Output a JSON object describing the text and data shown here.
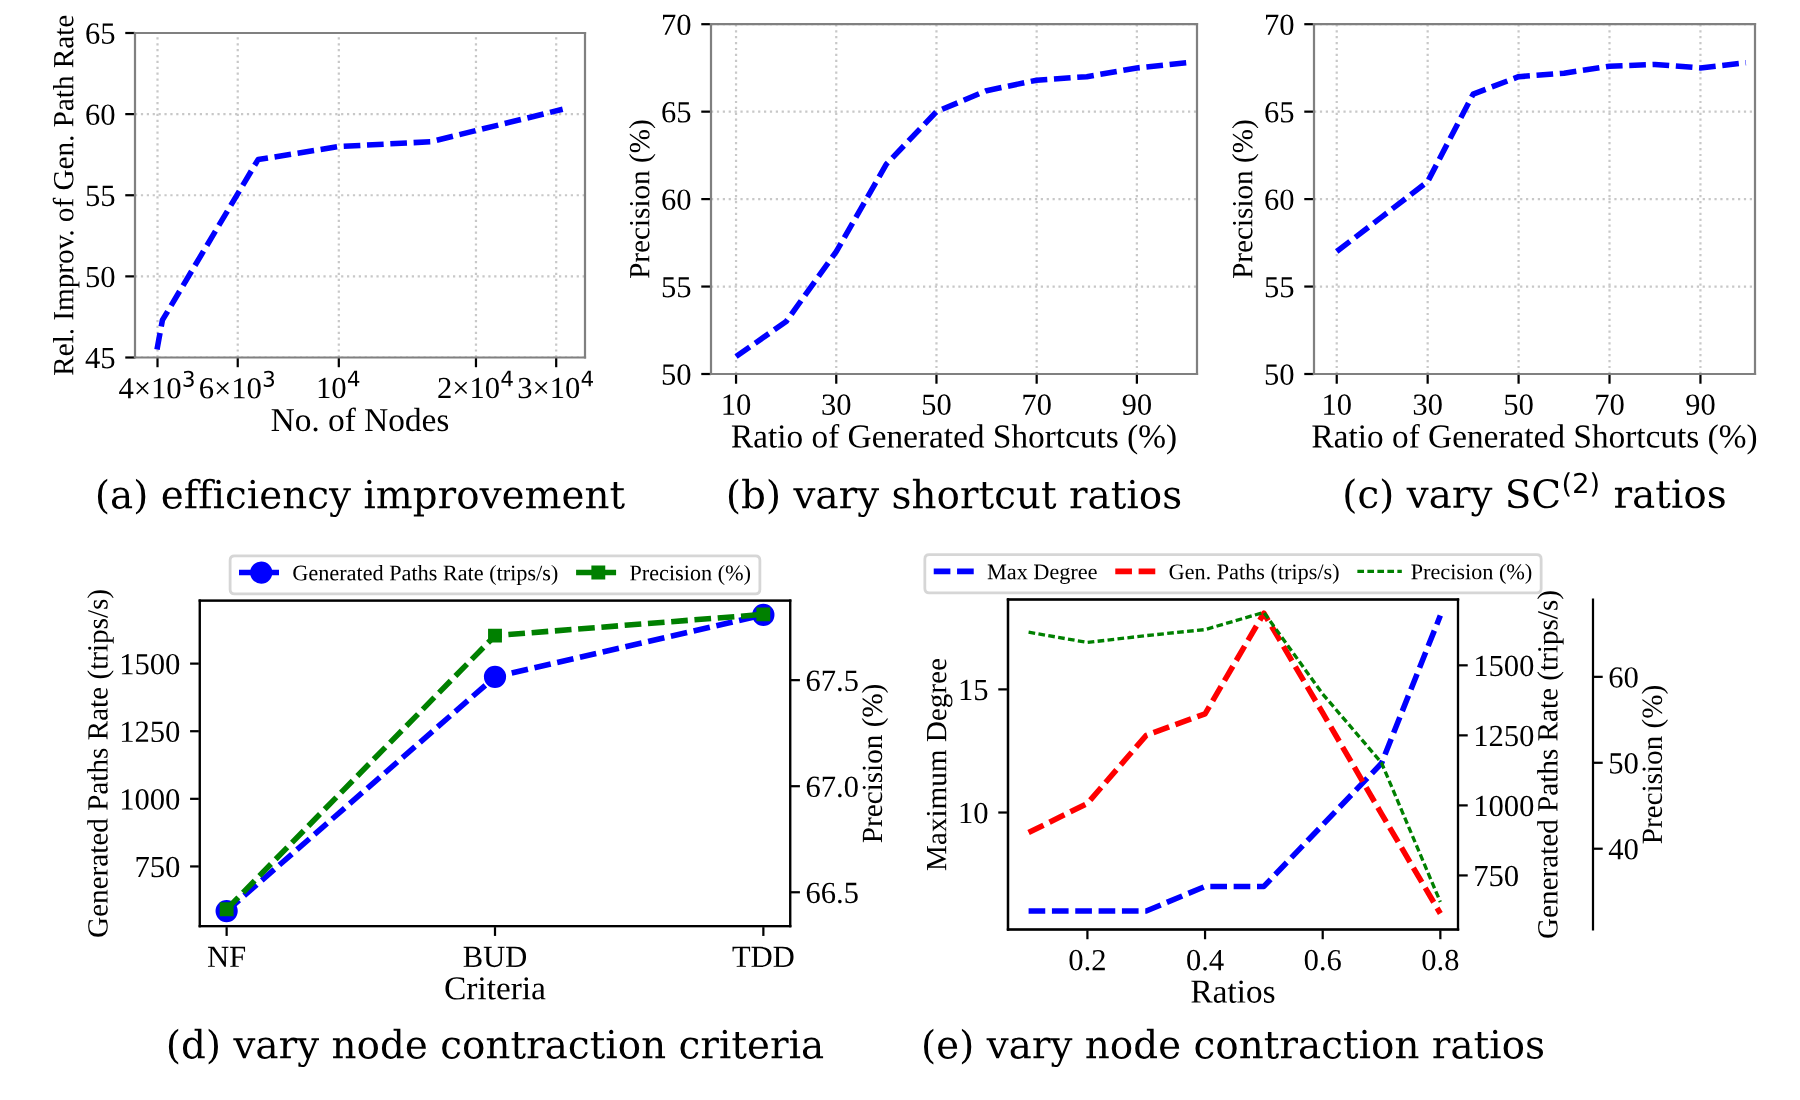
{
  "chart_data": [
    {
      "type": "line",
      "title": "(a) efficiency improvement",
      "xlabel": "No. of Nodes",
      "ylabel": "Rel. Improv. of Gen. Path Rate",
      "log": "x",
      "grid": true,
      "line_style": "dashed",
      "marker": "none",
      "series": [
        {
          "color": "#0000ff",
          "x": [
            3990,
            4100,
            6650,
            10000,
            15900,
            31000
          ],
          "values": [
            45.5,
            47.3,
            57.2,
            58,
            58.3,
            60.3
          ]
        }
      ],
      "xlim": [
        3570,
        34700
      ],
      "xticks": [
        {
          "value": 4000,
          "label": "4×10$^{3}$"
        },
        {
          "value": 6000,
          "label": "6×10$^{3}$"
        },
        {
          "value": 10000,
          "label": "10$^{4}$"
        },
        {
          "value": 20000,
          "label": "2×10$^{4}$"
        },
        {
          "value": 30000,
          "label": "3×10$^{4}$"
        }
      ],
      "ylim": [
        45,
        65
      ],
      "yticks": [
        45,
        50,
        55,
        60,
        65
      ]
    },
    {
      "type": "line",
      "title": "(b) vary shortcut ratios",
      "xlabel": "Ratio of Generated Shortcuts (%)",
      "ylabel": "Precision (%)",
      "grid": true,
      "line_style": "dashed",
      "marker": "none",
      "series": [
        {
          "color": "#0000ff",
          "x": [
            10,
            20,
            30,
            40,
            50,
            60,
            70,
            80,
            90,
            100
          ],
          "values": [
            51,
            53,
            57,
            62,
            65,
            66.2,
            66.8,
            67,
            67.5,
            67.8
          ]
        }
      ],
      "xlim": [
        5,
        102
      ],
      "xticks": [
        10,
        30,
        50,
        70,
        90
      ],
      "ylim": [
        50,
        70
      ],
      "yticks": [
        50,
        55,
        60,
        65,
        70
      ]
    },
    {
      "type": "line",
      "title": "(c) vary SC$^{(2)}$ ratios",
      "xlabel": "Ratio of Generated Shortcuts (%)",
      "ylabel": "Precision (%)",
      "grid": true,
      "line_style": "dashed",
      "marker": "none",
      "series": [
        {
          "color": "#0000ff",
          "x": [
            10,
            20,
            30,
            40,
            50,
            60,
            70,
            80,
            90,
            100
          ],
          "values": [
            57,
            59,
            61,
            66,
            67,
            67.2,
            67.6,
            67.7,
            67.5,
            67.8
          ]
        }
      ],
      "xlim": [
        5,
        102
      ],
      "xticks": [
        10,
        30,
        50,
        70,
        90
      ],
      "ylim": [
        50,
        70
      ],
      "yticks": [
        50,
        55,
        60,
        65,
        70
      ]
    },
    {
      "type": "line",
      "title": "(d) vary node contraction criteria",
      "xlabel": "Criteria",
      "ylabel": "Generated Paths Rate (trips/s)",
      "y2label": "Precision (%)",
      "legend": "top",
      "line_style": "dashed",
      "categories": [
        "NF",
        "BUD",
        "TDD"
      ],
      "series": [
        {
          "name": "Generated Paths Rate (trips/s)",
          "color": "#0000ff",
          "marker": "circle",
          "values": [
            585,
            1451,
            1680
          ]
        },
        {
          "name": "Precision (%)",
          "color": "#008000",
          "marker": "square",
          "axis": "y2",
          "values": [
            66.42,
            67.71,
            67.81
          ]
        }
      ],
      "ylim": [
        529,
        1733
      ],
      "yticks": [
        750,
        1000,
        1250,
        1500
      ],
      "y2lim": [
        66.34,
        67.875
      ],
      "y2ticks": [
        {
          "value": 66.5,
          "label": "66.5"
        },
        {
          "value": 67,
          "label": "67.0"
        },
        {
          "value": 67.5,
          "label": "67.5"
        }
      ]
    },
    {
      "type": "line",
      "title": "(e) vary node contraction ratios",
      "xlabel": "Ratios",
      "ylabel": "Maximum Degree",
      "y2label": "Generated Paths Rate (trips/s)",
      "y3label": "Precision (%)",
      "legend": "top",
      "marker": "none",
      "x": [
        0.1,
        0.2,
        0.3,
        0.4,
        0.5,
        0.6,
        0.7,
        0.8
      ],
      "series": [
        {
          "name": "Max Degree",
          "color": "#0000ff",
          "line_style": "dashed",
          "values": [
            6,
            6,
            6,
            7,
            7,
            9.5,
            12,
            18
          ]
        },
        {
          "name": "Gen. Paths (trips/s)",
          "color": "#ff0000",
          "line_style": "dashed",
          "axis": "y2",
          "values": [
            903,
            1007,
            1250,
            1327,
            1686,
            1330,
            970,
            614
          ]
        },
        {
          "name": "Precision (%)",
          "color": "#008000",
          "line_style": "dotted",
          "axis": "y3",
          "values": [
            65.2,
            64,
            64.8,
            65.5,
            67.5,
            58,
            50,
            33.8
          ]
        }
      ],
      "xlim": [
        0.065,
        0.83
      ],
      "xticks": [
        0.2,
        0.4,
        0.6,
        0.8
      ],
      "ylim": [
        5.25,
        18.65
      ],
      "yticks": [
        10,
        15
      ],
      "y2lim": [
        557,
        1735
      ],
      "y2ticks": [
        750,
        1000,
        1250,
        1500
      ],
      "y3lim": [
        30.6,
        69
      ],
      "y3ticks": [
        40,
        50,
        60
      ]
    }
  ]
}
